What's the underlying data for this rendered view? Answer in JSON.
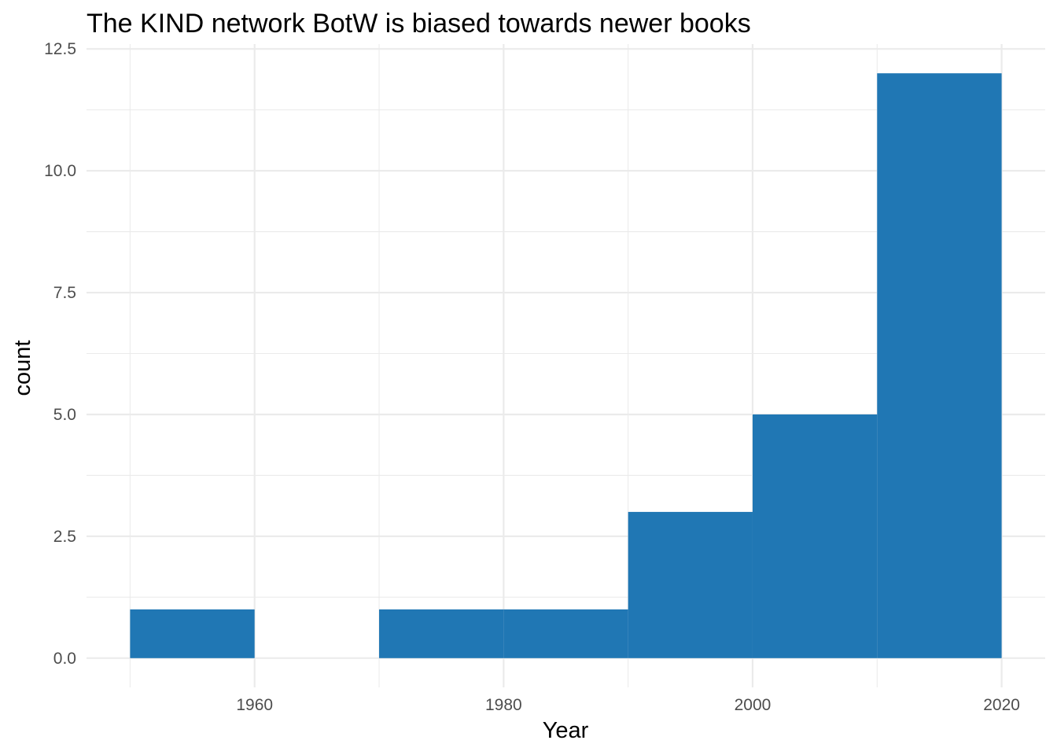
{
  "chart_data": {
    "type": "bar",
    "title": "The KIND network BotW is biased towards newer books",
    "xlabel": "Year",
    "ylabel": "count",
    "bins": [
      {
        "x0": 1950,
        "x1": 1960,
        "count": 1
      },
      {
        "x0": 1960,
        "x1": 1970,
        "count": 0
      },
      {
        "x0": 1970,
        "x1": 1980,
        "count": 1
      },
      {
        "x0": 1980,
        "x1": 1990,
        "count": 1
      },
      {
        "x0": 1990,
        "x1": 2000,
        "count": 3
      },
      {
        "x0": 2000,
        "x1": 2010,
        "count": 5
      },
      {
        "x0": 2010,
        "x1": 2020,
        "count": 12
      }
    ],
    "xlim": [
      1946.5,
      2023.5
    ],
    "ylim": [
      -0.6,
      12.6
    ],
    "x_ticks": [
      1960,
      1980,
      2000,
      2020
    ],
    "x_minor_ticks": [
      1950,
      1970,
      1990,
      2010
    ],
    "y_ticks": [
      0.0,
      2.5,
      5.0,
      7.5,
      10.0,
      12.5
    ],
    "y_tick_labels": [
      "0.0",
      "2.5",
      "5.0",
      "7.5",
      "10.0",
      "12.5"
    ],
    "y_minor_ticks": [
      1.25,
      3.75,
      6.25,
      8.75,
      11.25
    ],
    "bar_color": "#2077b4",
    "grid": true
  }
}
